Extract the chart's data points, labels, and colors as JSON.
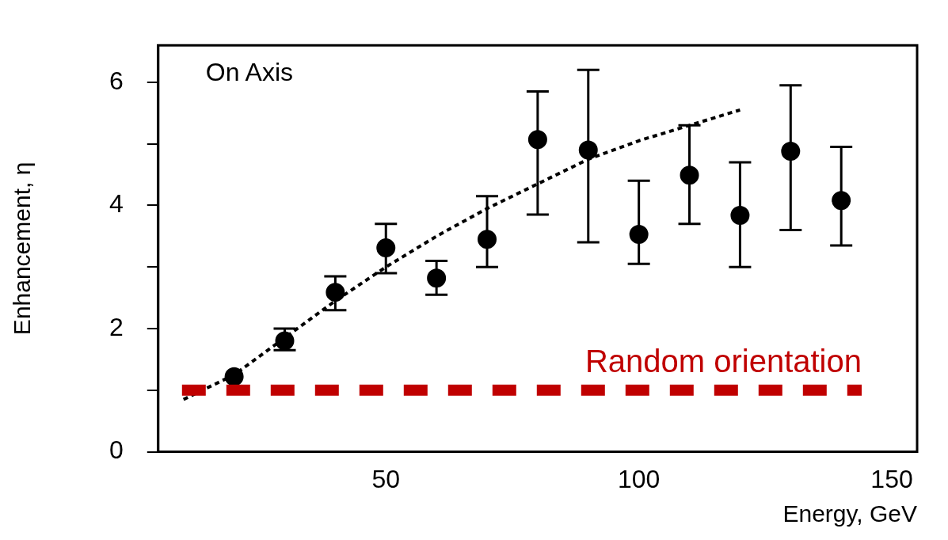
{
  "chart_data": {
    "type": "scatter",
    "xlabel": "Energy, GeV",
    "ylabel": "Enhancement, η",
    "annotations": [
      "On Axis"
    ],
    "xlim": [
      5,
      155
    ],
    "xticks": [
      50,
      100,
      150
    ],
    "ylim": [
      0,
      6.6
    ],
    "yticks": [
      0,
      {
        "value": 1,
        "label": null
      },
      2,
      {
        "value": 3,
        "label": null
      },
      4,
      {
        "value": 5,
        "label": null
      },
      6
    ],
    "grid": false,
    "legend": false,
    "marker": "circle",
    "series": [
      {
        "color": "#000000",
        "x": [
          20,
          30,
          40,
          50,
          60,
          70,
          80,
          90,
          100,
          110,
          120,
          130,
          140
        ],
        "values": [
          1.22,
          1.8,
          2.59,
          3.31,
          2.82,
          3.45,
          5.07,
          4.9,
          3.53,
          4.49,
          3.84,
          4.88,
          4.08
        ],
        "errors": [
          null,
          [
            1.65,
            2.0
          ],
          [
            2.3,
            2.85
          ],
          [
            2.9,
            3.7
          ],
          [
            2.55,
            3.1
          ],
          [
            3.0,
            4.15
          ],
          [
            3.85,
            5.85
          ],
          [
            3.4,
            6.2
          ],
          [
            3.05,
            4.4
          ],
          [
            3.7,
            5.3
          ],
          [
            3.0,
            4.7
          ],
          [
            3.6,
            5.95
          ],
          [
            3.35,
            4.95
          ]
        ]
      },
      {
        "type": "line",
        "color": "#000000",
        "line_style": "dotted",
        "marker": "none",
        "x": [
          10,
          20,
          30,
          40,
          50,
          60,
          70,
          80,
          90,
          100,
          110,
          120
        ],
        "values": [
          0.85,
          1.25,
          1.85,
          2.45,
          3.0,
          3.5,
          3.95,
          4.35,
          4.75,
          5.05,
          5.3,
          5.55
        ]
      }
    ],
    "ref_lines": [
      {
        "axis": "y",
        "value": 1,
        "label": "Random orientation",
        "color": "#c00000",
        "line_style": "dashed"
      }
    ]
  }
}
